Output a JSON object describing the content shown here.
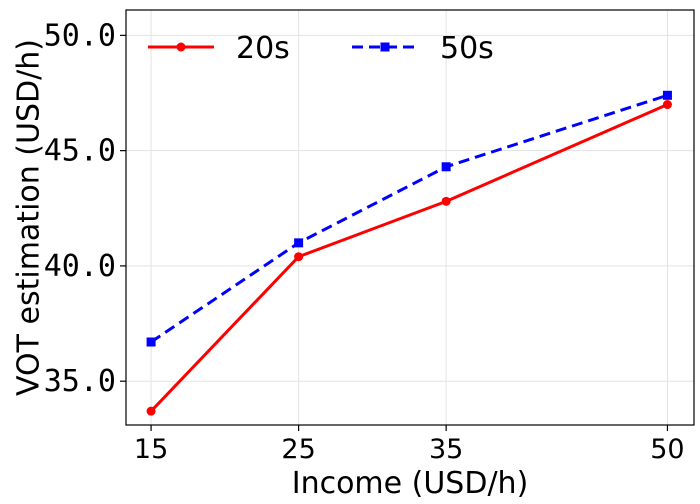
{
  "chart_data": {
    "type": "line",
    "xlabel": "Income (USD/h)",
    "ylabel": "VOT estimation (USD/h)",
    "x_ticks": [
      "15",
      "25",
      "35",
      "50"
    ],
    "y_ticks": [
      "35.0",
      "40.0",
      "45.0",
      "50.0"
    ],
    "xlim": [
      13.3,
      51.8
    ],
    "ylim": [
      33.1,
      51.1
    ],
    "grid": true,
    "legend_position": "top",
    "series": [
      {
        "name": "20s",
        "color": "#ff0000",
        "line_style": "solid",
        "marker": "circle",
        "x": [
          15,
          25,
          35,
          50
        ],
        "y": [
          33.7,
          40.4,
          42.8,
          47.0
        ]
      },
      {
        "name": "50s",
        "color": "#0000ff",
        "line_style": "dashed",
        "marker": "square",
        "x": [
          15,
          25,
          35,
          50
        ],
        "y": [
          36.7,
          41.0,
          44.3,
          47.4
        ]
      }
    ]
  }
}
